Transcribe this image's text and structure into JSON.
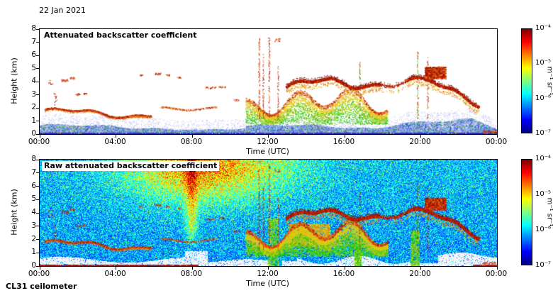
{
  "figure": {
    "date_label": "22 Jan 2021",
    "footer_label": "CL31 ceilometer",
    "background": "#ffffff"
  },
  "chart_data": [
    {
      "type": "heatmap",
      "title": "Attenuated backscatter coefficient",
      "xlabel": "Time (UTC)",
      "ylabel": "Height (km)",
      "x_ticks": [
        "00:00",
        "04:00",
        "08:00",
        "12:00",
        "16:00",
        "20:00",
        "00:00"
      ],
      "x_tick_hours": [
        0,
        4,
        8,
        12,
        16,
        20,
        24
      ],
      "x_range_hours": [
        0,
        24
      ],
      "y_ticks": [
        0,
        1,
        2,
        3,
        4,
        5,
        6,
        7,
        8
      ],
      "ylim": [
        0,
        8
      ],
      "grid": false,
      "colorbar": {
        "ticks": [
          "10⁻⁴",
          "10⁻⁵",
          "10⁻⁶",
          "10⁻⁷"
        ],
        "unit": "m⁻¹ sr⁻¹",
        "scale": "log",
        "min": "10⁻⁷",
        "max": "10⁻⁴",
        "colormap": "jet",
        "position": "right"
      },
      "features": [
        {
          "name": "boundary-layer-aerosol",
          "time_utc": [
            0,
            24
          ],
          "height_km": [
            0,
            1.2
          ],
          "signal": "weak-moderate"
        },
        {
          "name": "elevated-aerosol-layer",
          "time_utc": [
            0.3,
            9.3
          ],
          "height_km": [
            1.3,
            2.2
          ],
          "signal": "strong"
        },
        {
          "name": "scattered-cloud-returns",
          "time_utc": [
            0.5,
            10
          ],
          "height_km": [
            2.5,
            4.7
          ],
          "signal": "strong"
        },
        {
          "name": "convective-plumes",
          "time_utc": [
            10.8,
            18.2
          ],
          "height_km": [
            0.8,
            4.4
          ],
          "signal": "moderate-strong"
        },
        {
          "name": "cloud-layer",
          "time_utc": [
            12.9,
            23
          ],
          "height_km": [
            2.7,
            5.1
          ],
          "signal": "strong"
        },
        {
          "name": "deep-cloud-streaks",
          "time_utc": [
            11.5,
            12.5
          ],
          "height_km": [
            1,
            7.6
          ],
          "signal": "strong"
        }
      ]
    },
    {
      "type": "heatmap",
      "title": "Raw attenuated backscatter coefficient",
      "xlabel": "Time (UTC)",
      "ylabel": "Height (km)",
      "x_ticks": [
        "00:00",
        "04:00",
        "08:00",
        "12:00",
        "16:00",
        "20:00",
        "00:00"
      ],
      "x_tick_hours": [
        0,
        4,
        8,
        12,
        16,
        20,
        24
      ],
      "x_range_hours": [
        0,
        24
      ],
      "y_ticks": [
        0,
        1,
        2,
        3,
        4,
        5,
        6,
        7,
        8
      ],
      "ylim": [
        0,
        8
      ],
      "grid": false,
      "colorbar": {
        "ticks": [
          "10⁻⁴",
          "10⁻⁵",
          "10⁻⁶",
          "10⁻⁷"
        ],
        "unit": "m⁻¹ sr⁻¹",
        "scale": "log",
        "min": "10⁻⁷",
        "max": "10⁻⁴",
        "colormap": "jet",
        "position": "right"
      },
      "features": [
        {
          "name": "background-noise",
          "time_utc": [
            0,
            24
          ],
          "height_km": [
            0,
            8
          ],
          "signal": "blue-green speckle"
        },
        {
          "name": "daytime-noise-enhancement",
          "time_utc": [
            5,
            12
          ],
          "height_km": [
            4,
            8
          ],
          "signal": "orange-red"
        },
        {
          "name": "low-level-saturation-white",
          "time_utc": [
            0,
            24
          ],
          "height_km": [
            0,
            1.2
          ],
          "signal": "white patches"
        },
        {
          "name": "elevated-aerosol-layer",
          "time_utc": [
            0.3,
            9.3
          ],
          "height_km": [
            1.3,
            2.2
          ],
          "signal": "strong"
        },
        {
          "name": "convective-plumes",
          "time_utc": [
            10.8,
            18.2
          ],
          "height_km": [
            0,
            4.4
          ],
          "signal": "moderate-strong"
        },
        {
          "name": "cloud-layer",
          "time_utc": [
            12.9,
            23
          ],
          "height_km": [
            2.7,
            5.1
          ],
          "signal": "strong"
        }
      ]
    }
  ]
}
